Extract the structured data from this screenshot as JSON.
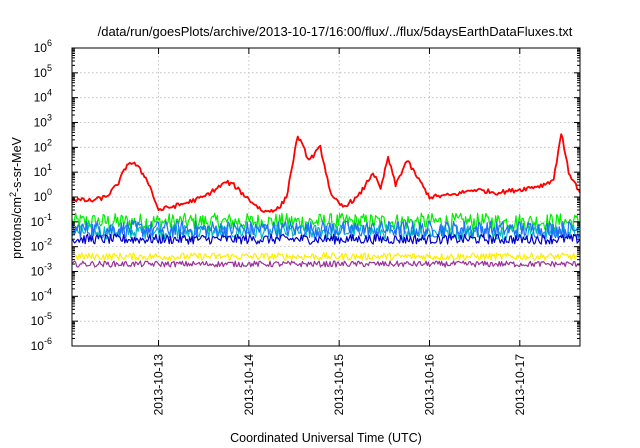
{
  "chart_data": {
    "type": "line",
    "title": "/data/run/goesPlots/archive/2013-10-17/16:00/flux/../flux/5daysEarthDataFluxes.txt",
    "xlabel": "Coordinated Universal Time (UTC)",
    "ylabel_prefix": "protons/cm",
    "ylabel_sup": "2",
    "ylabel_suffix": "-s-sr-MeV",
    "y_scale": "log",
    "ylim": [
      1e-06,
      1000000.0
    ],
    "y_ticks": [
      {
        "exp": -6,
        "base": "10",
        "sup": "-6"
      },
      {
        "exp": -5,
        "base": "10",
        "sup": "-5"
      },
      {
        "exp": -4,
        "base": "10",
        "sup": "-4"
      },
      {
        "exp": -3,
        "base": "10",
        "sup": "-3"
      },
      {
        "exp": -2,
        "base": "10",
        "sup": "-2"
      },
      {
        "exp": -1,
        "base": "10",
        "sup": "-1"
      },
      {
        "exp": 0,
        "base": "10",
        "sup": "0"
      },
      {
        "exp": 1,
        "base": "10",
        "sup": "1"
      },
      {
        "exp": 2,
        "base": "10",
        "sup": "2"
      },
      {
        "exp": 3,
        "base": "10",
        "sup": "3"
      },
      {
        "exp": 4,
        "base": "10",
        "sup": "4"
      },
      {
        "exp": 5,
        "base": "10",
        "sup": "5"
      },
      {
        "exp": 6,
        "base": "10",
        "sup": "6"
      }
    ],
    "x_range_days": [
      "2013-10-12T01:00",
      "2013-10-17T16:00"
    ],
    "x_ticks": [
      "2013-10-13",
      "2013-10-14",
      "2013-10-15",
      "2013-10-16",
      "2013-10-17"
    ],
    "grid": true,
    "legend": "none",
    "series": [
      {
        "color": "#ff0000",
        "points": [
          [
            "2013-10-12T01:00",
            0.8
          ],
          [
            "2013-10-12T06:00",
            0.7
          ],
          [
            "2013-10-12T10:00",
            1.0
          ],
          [
            "2013-10-12T13:00",
            3.0
          ],
          [
            "2013-10-12T16:00",
            25
          ],
          [
            "2013-10-12T18:00",
            20
          ],
          [
            "2013-10-12T21:00",
            5.0
          ],
          [
            "2013-10-13T00:00",
            0.3
          ],
          [
            "2013-10-13T06:00",
            0.5
          ],
          [
            "2013-10-13T12:00",
            1.0
          ],
          [
            "2013-10-13T18:00",
            4.0
          ],
          [
            "2013-10-13T20:00",
            3.0
          ],
          [
            "2013-10-14T00:00",
            0.8
          ],
          [
            "2013-10-14T04:00",
            0.25
          ],
          [
            "2013-10-14T08:00",
            0.35
          ],
          [
            "2013-10-14T10:00",
            1.0
          ],
          [
            "2013-10-14T13:00",
            300
          ],
          [
            "2013-10-14T16:00",
            30
          ],
          [
            "2013-10-14T19:00",
            100
          ],
          [
            "2013-10-14T22:00",
            1.0
          ],
          [
            "2013-10-15T01:00",
            0.4
          ],
          [
            "2013-10-15T05:00",
            1.0
          ],
          [
            "2013-10-15T07:00",
            3.0
          ],
          [
            "2013-10-15T09:00",
            10
          ],
          [
            "2013-10-15T11:00",
            2.0
          ],
          [
            "2013-10-15T13:00",
            40
          ],
          [
            "2013-10-15T15:00",
            3.0
          ],
          [
            "2013-10-15T18:00",
            30
          ],
          [
            "2013-10-16T00:00",
            1.0
          ],
          [
            "2013-10-16T06:00",
            1.2
          ],
          [
            "2013-10-16T12:00",
            2.0
          ],
          [
            "2013-10-16T18:00",
            1.5
          ],
          [
            "2013-10-17T00:00",
            2.0
          ],
          [
            "2013-10-17T06:00",
            3.0
          ],
          [
            "2013-10-17T09:00",
            5.0
          ],
          [
            "2013-10-17T11:00",
            400
          ],
          [
            "2013-10-17T13:00",
            10
          ],
          [
            "2013-10-17T16:00",
            1.5
          ]
        ]
      },
      {
        "color": "#00ee00",
        "level": 0.1,
        "spread": 0.35
      },
      {
        "color": "#00bbbb",
        "level": 0.04,
        "spread": 0.3
      },
      {
        "color": "#1f6fff",
        "level": 0.05,
        "spread": 0.35
      },
      {
        "color": "#0000cc",
        "level": 0.02,
        "spread": 0.2
      },
      {
        "color": "#ffee00",
        "level": 0.004,
        "spread": 0.15
      },
      {
        "color": "#993399",
        "level": 0.002,
        "spread": 0.12
      }
    ]
  }
}
